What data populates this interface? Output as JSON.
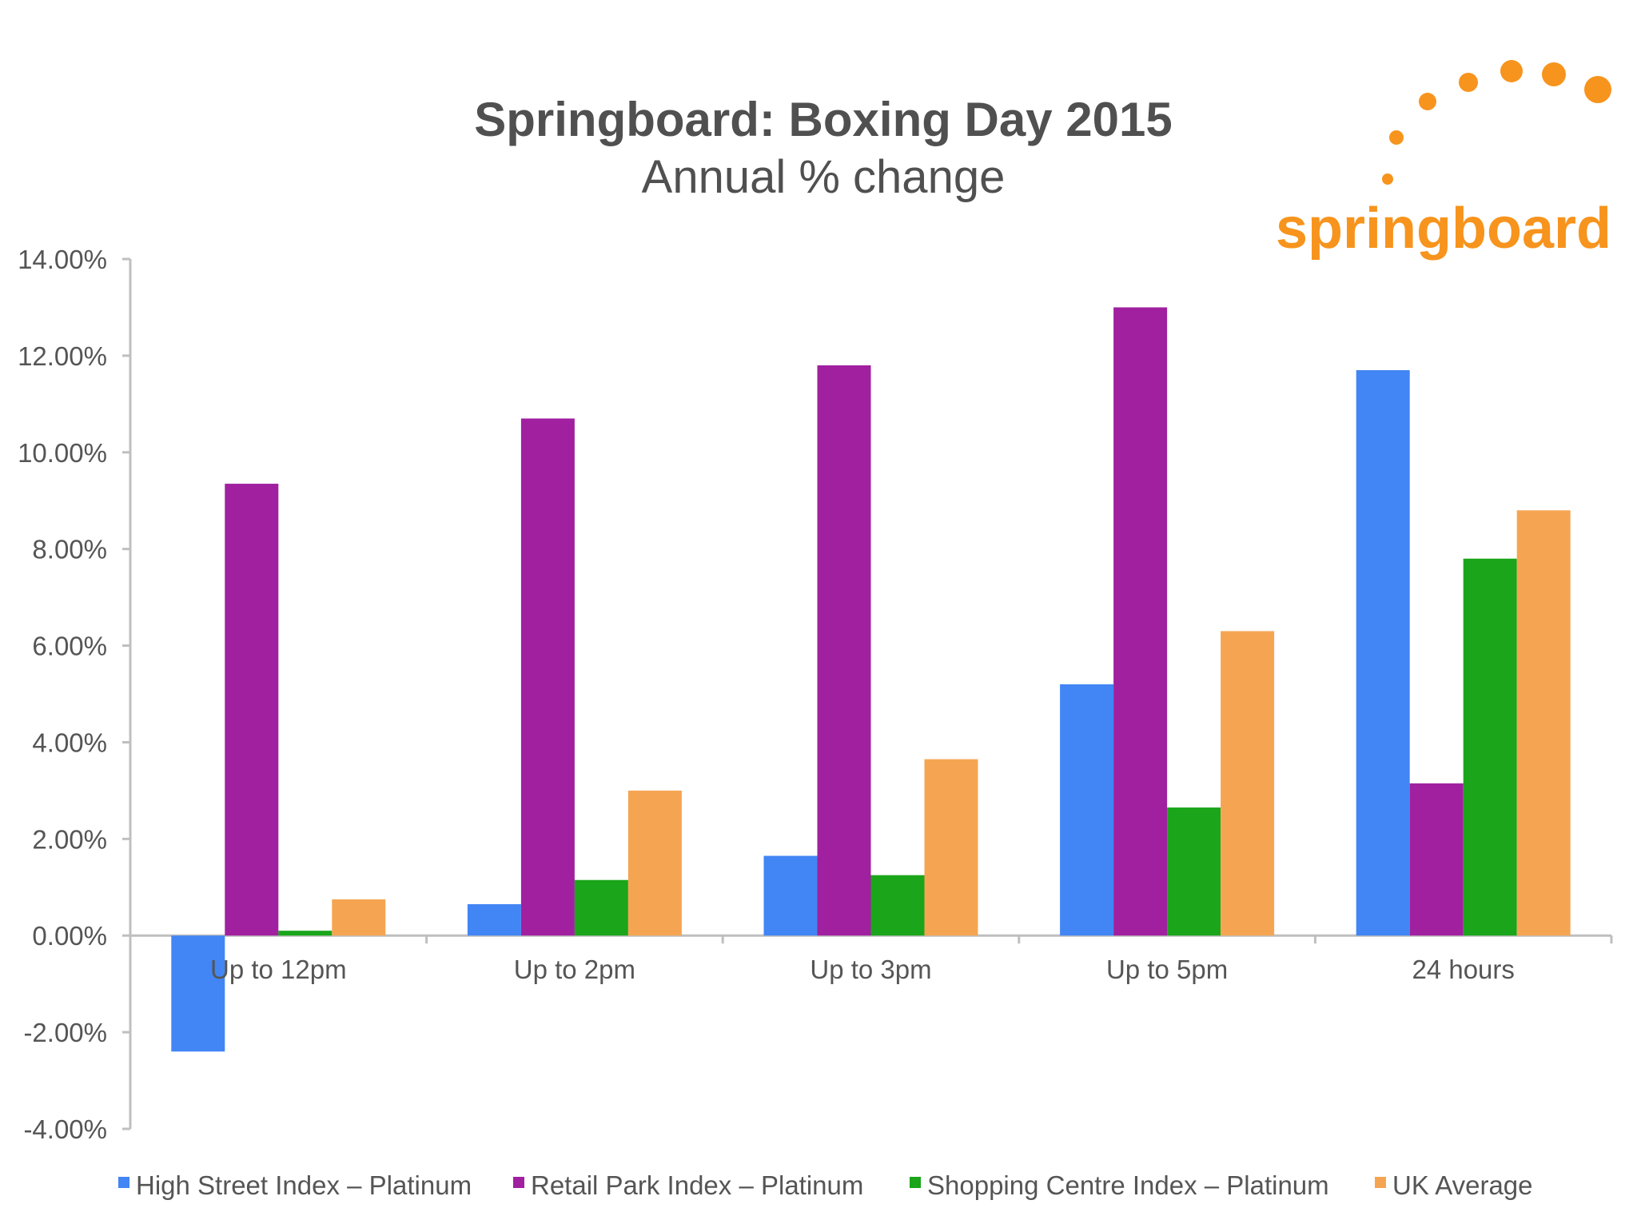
{
  "chart_data": {
    "type": "bar",
    "title": "Springboard: Boxing Day 2015",
    "subtitle": "Annual % change",
    "categories": [
      "Up to 12pm",
      "Up to 2pm",
      "Up to 3pm",
      "Up to 5pm",
      "24 hours"
    ],
    "series": [
      {
        "name": "High Street Index – Platinum",
        "color": "#4285f4",
        "values": [
          -2.4,
          0.65,
          1.65,
          5.2,
          11.7
        ]
      },
      {
        "name": "Retail Park Index – Platinum",
        "color": "#a020a0",
        "values": [
          9.35,
          10.7,
          11.8,
          13.0,
          3.15
        ]
      },
      {
        "name": "Shopping Centre Index – Platinum",
        "color": "#1aa51a",
        "values": [
          0.1,
          1.15,
          1.25,
          2.65,
          7.8
        ]
      },
      {
        "name": "UK Average",
        "color": "#f5a552",
        "values": [
          0.75,
          3.0,
          3.65,
          6.3,
          8.8
        ]
      }
    ],
    "ylim": [
      -4,
      14
    ],
    "yticks": [
      "14.00%",
      "12.00%",
      "10.00%",
      "8.00%",
      "6.00%",
      "4.00%",
      "2.00%",
      "0.00%",
      "-2.00%",
      "-4.00%"
    ],
    "ytick_values": [
      14,
      12,
      10,
      8,
      6,
      4,
      2,
      0,
      -2,
      -4
    ],
    "grid": false,
    "legend_position": "bottom"
  },
  "logo": {
    "text": "springboard",
    "color": "#f7941d"
  }
}
